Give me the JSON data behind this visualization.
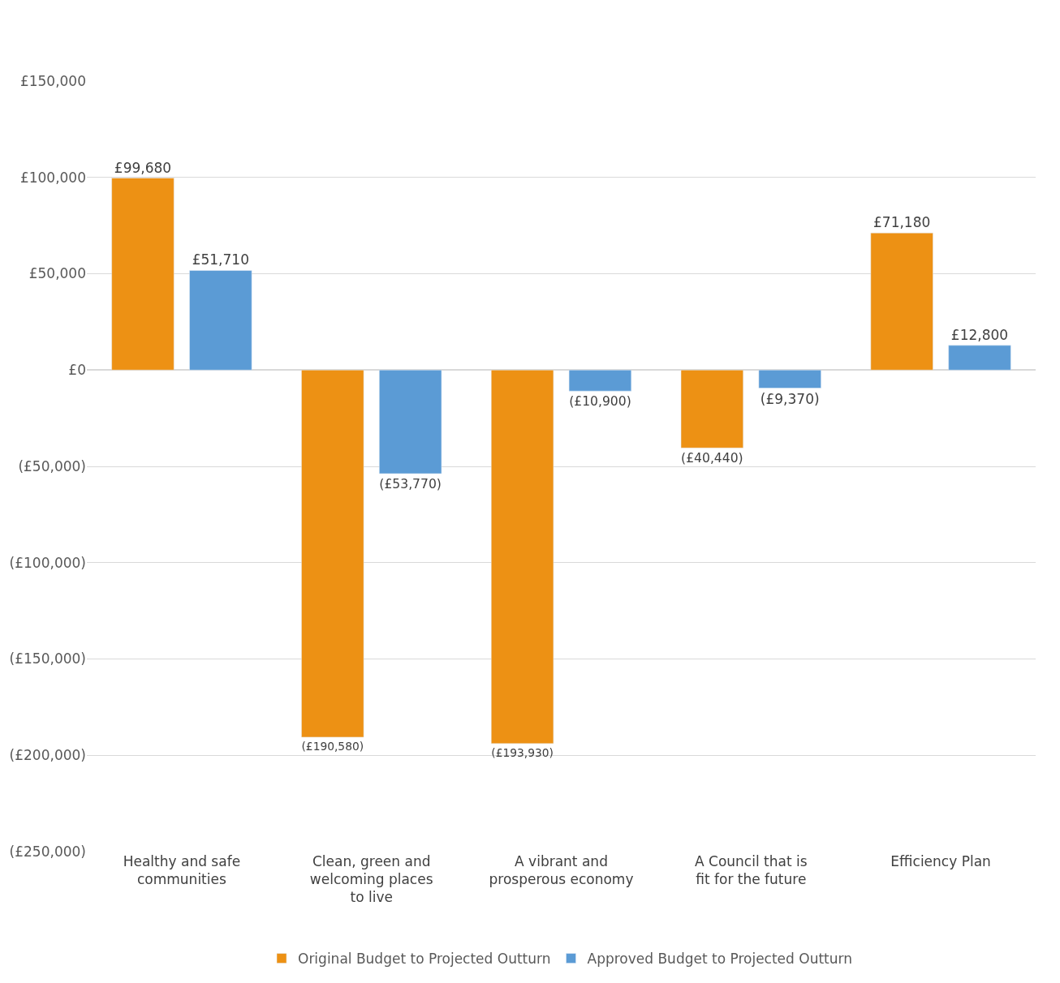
{
  "chart_data": {
    "type": "bar",
    "categories": [
      "Healthy and safe communities",
      "Clean, green and welcoming places to live",
      "A vibrant and prosperous economy",
      "A Council that is fit for the future",
      "Efficiency Plan"
    ],
    "series": [
      {
        "name": "Original Budget to Projected Outturn",
        "color": "#ed9114",
        "values": [
          99680,
          -190580,
          -193930,
          -40440,
          71180
        ],
        "value_labels": [
          "£99,680",
          "(£190,580)",
          "(£193,930)",
          "(£40,440)",
          "£71,180"
        ]
      },
      {
        "name": "Approved Budget to Projected Outturn",
        "color": "#5b9bd5",
        "values": [
          51710,
          -53770,
          -10900,
          -9370,
          12800
        ],
        "value_labels": [
          "£51,710",
          "(£53,770)",
          "(£10,900)",
          "(£9,370)",
          "£12,800"
        ]
      }
    ],
    "ylim": [
      -250000,
      150000
    ],
    "yticks": [
      {
        "value": -250000,
        "label": "(£250,000)"
      },
      {
        "value": -200000,
        "label": "(£200,000)"
      },
      {
        "value": -150000,
        "label": "(£150,000)"
      },
      {
        "value": -100000,
        "label": "(£100,000)"
      },
      {
        "value": -50000,
        "label": "(£50,000)"
      },
      {
        "value": 0,
        "label": "£0"
      },
      {
        "value": 50000,
        "label": "£50,000"
      },
      {
        "value": 100000,
        "label": "£100,000"
      },
      {
        "value": 150000,
        "label": "£150,000"
      }
    ],
    "grid": "y",
    "legend": "bottom"
  }
}
